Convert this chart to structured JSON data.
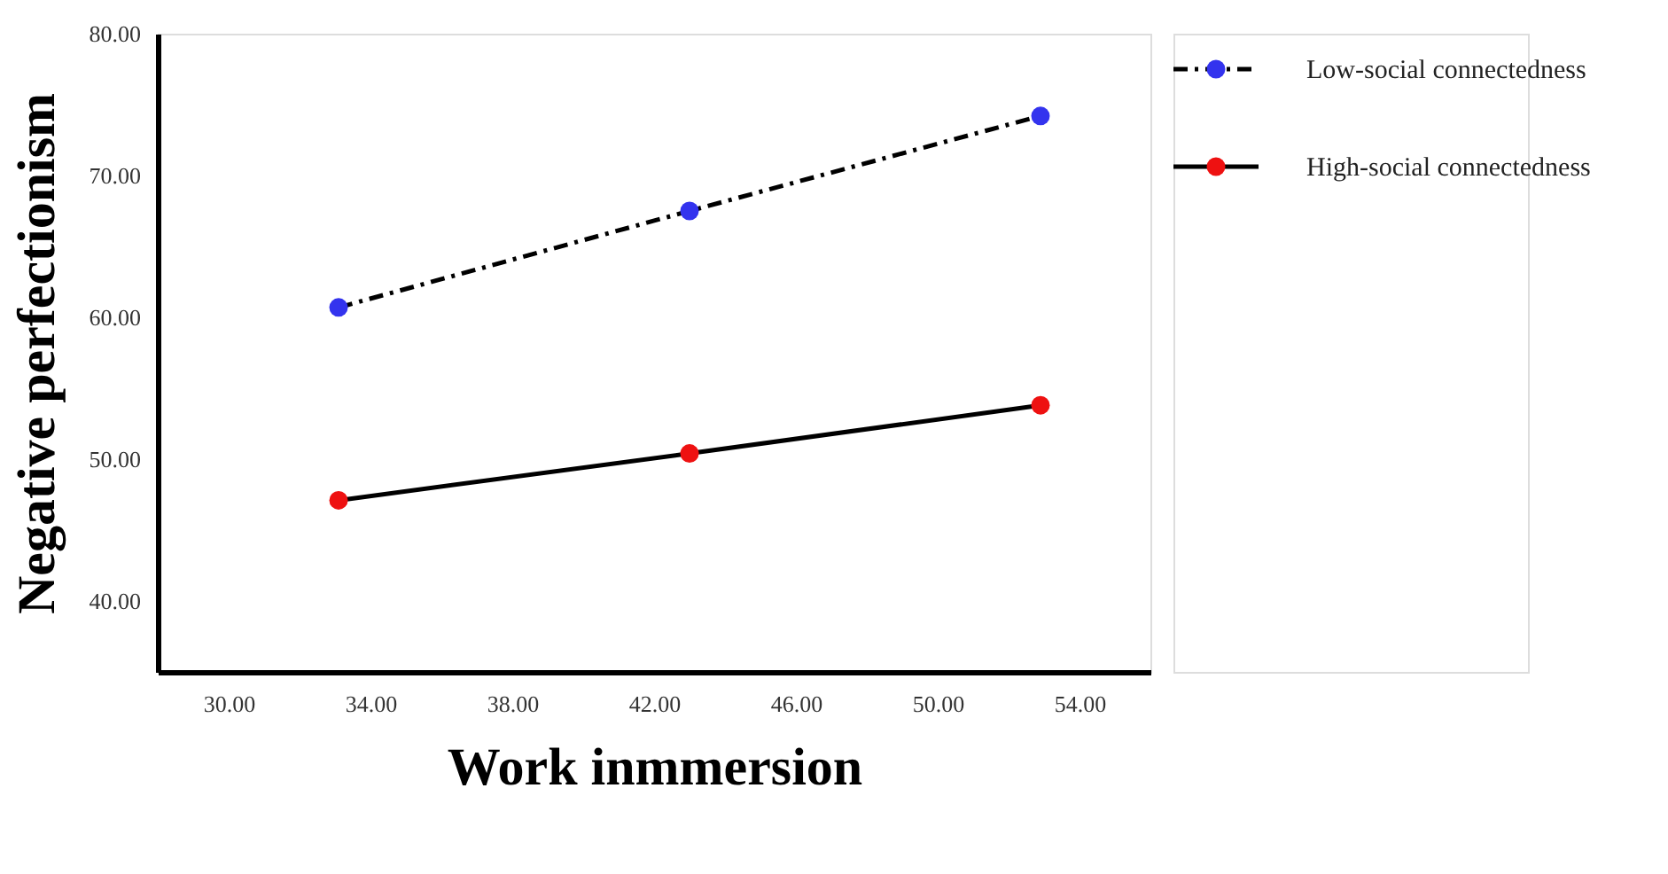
{
  "chart_data": {
    "type": "line",
    "xlabel": "Work inmmersion",
    "ylabel": "Negative perfectionism",
    "x": [
      33.1,
      43.0,
      52.9
    ],
    "series": [
      {
        "name": "Low-social connectedness",
        "color": "#3333ee",
        "values": [
          60.7,
          67.5,
          74.2
        ],
        "line_style": "dashed"
      },
      {
        "name": "High-social connectedness",
        "color": "#ee1111",
        "values": [
          47.1,
          50.4,
          53.8
        ],
        "line_style": "solid"
      }
    ],
    "xlim": [
      28,
      56
    ],
    "xticks": [
      {
        "value": 30,
        "label": "30.00"
      },
      {
        "value": 34,
        "label": "34.00"
      },
      {
        "value": 38,
        "label": "38.00"
      },
      {
        "value": 42,
        "label": "42.00"
      },
      {
        "value": 46,
        "label": "46.00"
      },
      {
        "value": 50,
        "label": "50.00"
      },
      {
        "value": 54,
        "label": "54.00"
      }
    ],
    "ylim": [
      35,
      80
    ],
    "yticks": [
      {
        "value": 40,
        "label": "40.00"
      },
      {
        "value": 50,
        "label": "50.00"
      },
      {
        "value": 60,
        "label": "60.00"
      },
      {
        "value": 70,
        "label": "70.00"
      },
      {
        "value": 80,
        "label": "80.00"
      }
    ],
    "marker": "circle",
    "grid": false,
    "legend": "top right"
  }
}
